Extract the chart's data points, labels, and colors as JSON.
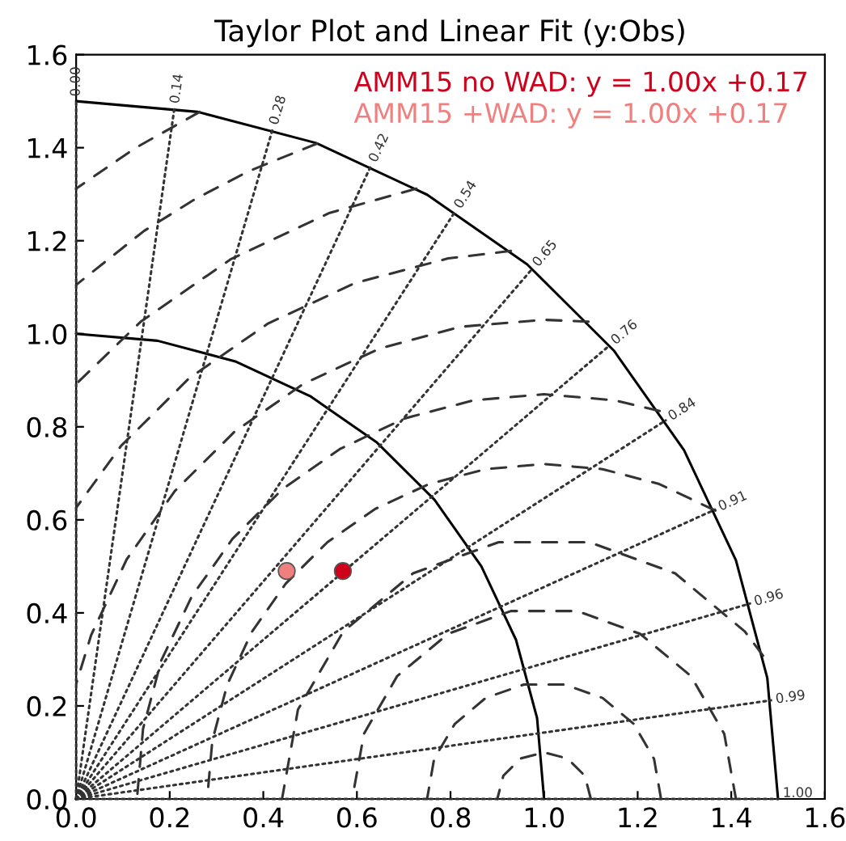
{
  "chart_data": {
    "type": "scatter",
    "title": "Taylor Plot and Linear Fit (y:Obs)",
    "series": [
      {
        "type": "line",
        "line_style": "solid",
        "color": "#000000",
        "x": [
          1,
          0.985,
          0.94,
          0.866,
          0.766,
          0.643,
          0.5,
          0.342,
          0.174,
          0
        ],
        "values": [
          0,
          0.174,
          0.342,
          0.5,
          0.643,
          0.766,
          0.866,
          0.94,
          0.985,
          1
        ]
      },
      {
        "type": "line",
        "line_style": "solid",
        "color": "#000000",
        "x": [
          1.5,
          1.477,
          1.41,
          1.299,
          1.149,
          0.964,
          0.75,
          0.513,
          0.26,
          0
        ],
        "values": [
          0,
          0.26,
          0.513,
          0.75,
          0.964,
          1.149,
          1.299,
          1.41,
          1.477,
          1.5
        ]
      },
      {
        "type": "line",
        "line_style": "dashed",
        "color": "#333333",
        "x": [
          1.1,
          1.087,
          1.05,
          1,
          0.95,
          0.913,
          0.9
        ],
        "values": [
          0,
          0.05,
          0.087,
          0.1,
          0.087,
          0.05,
          0
        ]
      },
      {
        "type": "line",
        "line_style": "dashed",
        "color": "#333333",
        "x": [
          1.25,
          1.235,
          1.192,
          1.125,
          1.044,
          0.957,
          0.875,
          0.809,
          0.765,
          0.75
        ],
        "values": [
          0,
          0.086,
          0.161,
          0.217,
          0.246,
          0.246,
          0.217,
          0.161,
          0.086,
          0
        ]
      },
      {
        "type": "line",
        "line_style": "dashed",
        "color": "#333333",
        "x": [
          1.41,
          1.385,
          1.314,
          1.205,
          1.071,
          0.929,
          0.795,
          0.686,
          0.615,
          0.59
        ],
        "values": [
          0,
          0.14,
          0.264,
          0.355,
          0.404,
          0.404,
          0.355,
          0.264,
          0.14,
          0
        ]
      },
      {
        "type": "line",
        "line_style": "dashed",
        "color": "#333333",
        "x": [
          1.468,
          1.429,
          1.28,
          1.097,
          0.903,
          0.72,
          0.571,
          0.474,
          0.44
        ],
        "values": [
          0.308,
          0.36,
          0.485,
          0.552,
          0.552,
          0.485,
          0.36,
          0.192,
          0
        ]
      },
      {
        "type": "line",
        "line_style": "dashed",
        "color": "#333333",
        "x": [
          1.366,
          1.246,
          1.125,
          1,
          0.875,
          0.754,
          0.64,
          0.537,
          0.448,
          0.376,
          0.323,
          0.291,
          0.28
        ],
        "values": [
          0.62,
          0.677,
          0.709,
          0.72,
          0.709,
          0.677,
          0.624,
          0.552,
          0.463,
          0.36,
          0.246,
          0.125,
          0
        ]
      },
      {
        "type": "line",
        "line_style": "dashed",
        "color": "#333333",
        "x": [
          1.247,
          1.151,
          1,
          0.849,
          0.702,
          0.565,
          0.441,
          0.334,
          0.247,
          0.182,
          0.143,
          0.13
        ],
        "values": [
          0.834,
          0.857,
          0.87,
          0.857,
          0.818,
          0.753,
          0.666,
          0.559,
          0.435,
          0.298,
          0.151,
          0
        ]
      },
      {
        "type": "line",
        "line_style": "dashed",
        "color": "#333333",
        "x": [
          1.095,
          1,
          0.821,
          0.648,
          0.485,
          0.338,
          0.211,
          0.108,
          0.032,
          0
        ],
        "values": [
          1.026,
          1.03,
          1.015,
          0.968,
          0.892,
          0.789,
          0.662,
          0.515,
          0.352,
          0.247
        ]
      },
      {
        "type": "line",
        "line_style": "dashed",
        "color": "#333333",
        "x": [
          0.929,
          0.795,
          0.596,
          0.41,
          0.241,
          0.096,
          0
        ],
        "values": [
          1.178,
          1.162,
          1.109,
          1.022,
          0.904,
          0.759,
          0.626
        ]
      },
      {
        "type": "line",
        "line_style": "dashed",
        "color": "#333333",
        "x": [
          0.727,
          0.542,
          0.33,
          0.138,
          0
        ],
        "values": [
          1.312,
          1.26,
          1.16,
          1.026,
          0.892
        ]
      },
      {
        "type": "line",
        "line_style": "dashed",
        "color": "#333333",
        "x": [
          0.515,
          0.37,
          0.255,
          0.145,
          0
        ],
        "values": [
          1.409,
          1.35,
          1.29,
          1.221,
          1.105
        ]
      },
      {
        "type": "line",
        "line_style": "dashed",
        "color": "#333333",
        "x": [
          0.264,
          0.126,
          0
        ],
        "values": [
          1.477,
          1.399,
          1.312
        ]
      },
      {
        "type": "line",
        "line_style": "dotted",
        "color": "#333333",
        "x": [
          0,
          0.0
        ],
        "values": [
          0,
          1.5
        ]
      },
      {
        "type": "line",
        "line_style": "dotted",
        "color": "#333333",
        "x": [
          0,
          0.21
        ],
        "values": [
          0,
          1.485
        ]
      },
      {
        "type": "line",
        "line_style": "dotted",
        "color": "#333333",
        "x": [
          0,
          0.42
        ],
        "values": [
          0,
          1.44
        ]
      },
      {
        "type": "line",
        "line_style": "dotted",
        "color": "#333333",
        "x": [
          0,
          0.63
        ],
        "values": [
          0,
          1.361
        ]
      },
      {
        "type": "line",
        "line_style": "dotted",
        "color": "#333333",
        "x": [
          0,
          0.81
        ],
        "values": [
          0,
          1.263
        ]
      },
      {
        "type": "line",
        "line_style": "dotted",
        "color": "#333333",
        "x": [
          0,
          0.975
        ],
        "values": [
          0,
          1.14
        ]
      },
      {
        "type": "line",
        "line_style": "dotted",
        "color": "#333333",
        "x": [
          0,
          1.14
        ],
        "values": [
          0,
          0.975
        ]
      },
      {
        "type": "line",
        "line_style": "dotted",
        "color": "#333333",
        "x": [
          0,
          1.26
        ],
        "values": [
          0,
          0.814
        ]
      },
      {
        "type": "line",
        "line_style": "dotted",
        "color": "#333333",
        "x": [
          0,
          1.365
        ],
        "values": [
          0,
          0.622
        ]
      },
      {
        "type": "line",
        "line_style": "dotted",
        "color": "#333333",
        "x": [
          0,
          1.44
        ],
        "values": [
          0,
          0.42
        ]
      },
      {
        "type": "line",
        "line_style": "dotted",
        "color": "#333333",
        "x": [
          0,
          1.485
        ],
        "values": [
          0,
          0.212
        ]
      },
      {
        "type": "line",
        "line_style": "dotted",
        "color": "#333333",
        "x": [
          0,
          1.5
        ],
        "values": [
          0,
          0.0
        ]
      },
      {
        "name": "AMM15 no WAD: y = 1.00x +0.17",
        "color": "#d0021b",
        "marker": "circle",
        "x": [
          0.57
        ],
        "values": [
          0.49
        ]
      },
      {
        "name": "AMM15 +WAD: y = 1.00x +0.17",
        "color": "#f08080",
        "marker": "circle",
        "x": [
          0.45
        ],
        "values": [
          0.49
        ]
      }
    ],
    "annotations": [
      {
        "text": "0.00",
        "x": 0.0,
        "y": 1.5
      },
      {
        "text": "0.14",
        "x": 0.21,
        "y": 1.485
      },
      {
        "text": "0.28",
        "x": 0.42,
        "y": 1.44
      },
      {
        "text": "0.42",
        "x": 0.63,
        "y": 1.361
      },
      {
        "text": "0.54",
        "x": 0.81,
        "y": 1.263
      },
      {
        "text": "0.65",
        "x": 0.975,
        "y": 1.14
      },
      {
        "text": "0.76",
        "x": 1.14,
        "y": 0.975
      },
      {
        "text": "0.84",
        "x": 1.26,
        "y": 0.814
      },
      {
        "text": "0.91",
        "x": 1.365,
        "y": 0.622
      },
      {
        "text": "0.96",
        "x": 1.44,
        "y": 0.42
      },
      {
        "text": "0.99",
        "x": 1.485,
        "y": 0.212
      },
      {
        "text": "1.00",
        "x": 1.5,
        "y": 0.0
      }
    ],
    "legend": "top right",
    "xlim": [
      0,
      1.6
    ],
    "ylim": [
      0,
      1.6
    ],
    "xticks": [
      {
        "value": 0,
        "label": "0.0"
      },
      0.2,
      0.4,
      0.6,
      0.8,
      {
        "value": 1,
        "label": "1.0"
      },
      1.2,
      1.4,
      1.6
    ],
    "yticks": [
      {
        "value": 0,
        "label": "0.0"
      },
      0.2,
      0.4,
      0.6,
      0.8,
      {
        "value": 1,
        "label": "1.0"
      },
      1.2,
      1.4,
      1.6
    ]
  }
}
